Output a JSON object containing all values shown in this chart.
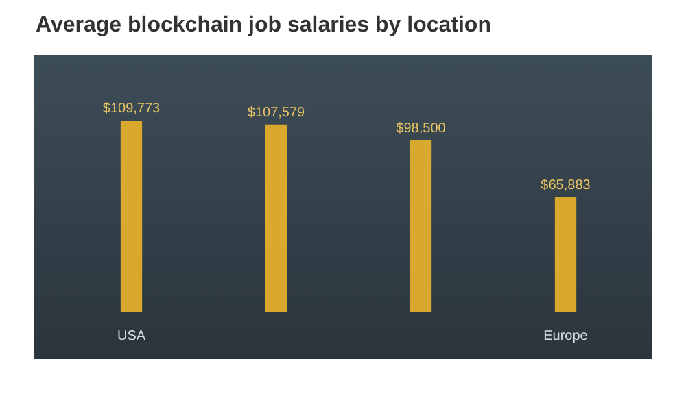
{
  "chart_data": {
    "type": "bar",
    "title": "Average blockchain job salaries by location",
    "categories": [
      "USA",
      null,
      null,
      "Europe"
    ],
    "values": [
      109773,
      107579,
      98500,
      65883
    ],
    "value_labels": [
      "$109,773",
      "$107,579",
      "$98,500",
      "$65,883"
    ],
    "color": "#d9a82e",
    "tick_labels": "x",
    "grid": false,
    "legend": false
  }
}
